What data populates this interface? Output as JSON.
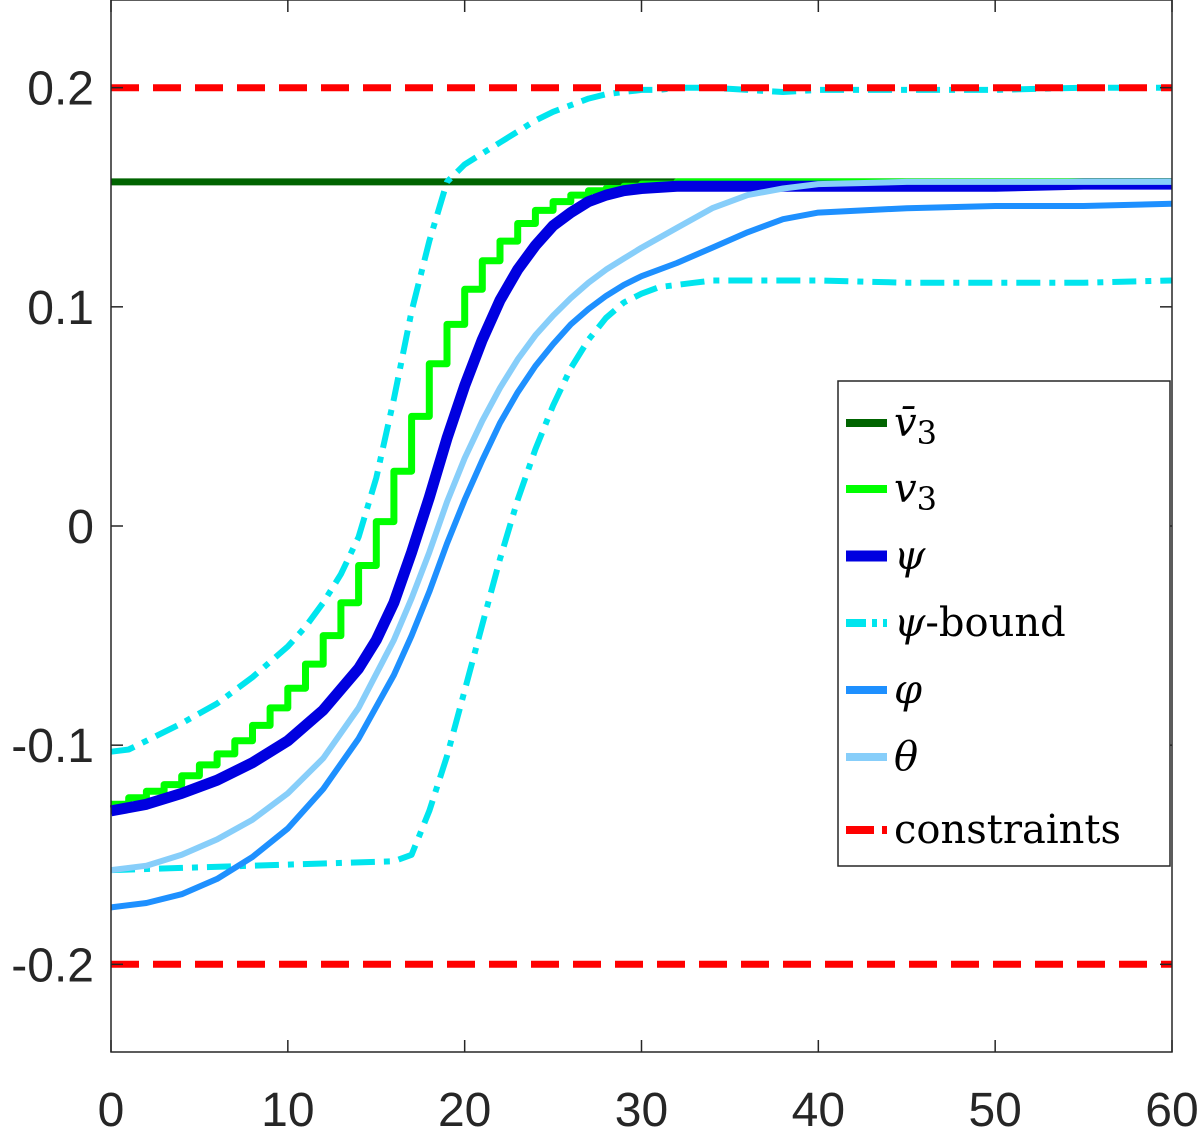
{
  "chart_data": {
    "type": "line",
    "title": "",
    "xlabel": "",
    "ylabel": "",
    "xlim": [
      0,
      60
    ],
    "ylim": [
      -0.24,
      0.24
    ],
    "xticks": [
      0,
      10,
      20,
      30,
      40,
      50,
      60
    ],
    "xtick_labels": [
      "0",
      "10",
      "20",
      "30",
      "40",
      "50",
      "60"
    ],
    "yticks": [
      0.2,
      0.1,
      0,
      -0.1,
      -0.2
    ],
    "ytick_labels": [
      "0.2",
      "0.1",
      "0",
      "-0.1",
      "-0.2"
    ],
    "grid": false,
    "legend_position": "right",
    "series": [
      {
        "key": "vbar3",
        "name": "v̄3",
        "color": "#006400",
        "style": "solid",
        "x": [
          0,
          60
        ],
        "y": [
          0.157,
          0.157
        ]
      },
      {
        "key": "v3",
        "name": "v3",
        "color": "#00ff00",
        "style": "step",
        "x": [
          0,
          1,
          2,
          3,
          4,
          5,
          6,
          7,
          8,
          9,
          10,
          11,
          12,
          13,
          14,
          15,
          16,
          17,
          18,
          19,
          20,
          21,
          22,
          23,
          24,
          25,
          26,
          27,
          28,
          29,
          30,
          31,
          32,
          33,
          34,
          36,
          38,
          40,
          45,
          50,
          55,
          60
        ],
        "y": [
          -0.127,
          -0.124,
          -0.121,
          -0.118,
          -0.114,
          -0.109,
          -0.104,
          -0.098,
          -0.091,
          -0.083,
          -0.074,
          -0.063,
          -0.05,
          -0.035,
          -0.018,
          0.002,
          0.025,
          0.05,
          0.074,
          0.092,
          0.108,
          0.121,
          0.13,
          0.138,
          0.144,
          0.148,
          0.151,
          0.153,
          0.154,
          0.155,
          0.156,
          0.156,
          0.157,
          0.157,
          0.157,
          0.157,
          0.157,
          0.157,
          0.157,
          0.157,
          0.157,
          0.157
        ]
      },
      {
        "key": "psi",
        "name": "ψ",
        "color": "#0000e0",
        "style": "solid",
        "x": [
          0,
          2,
          4,
          6,
          8,
          10,
          12,
          14,
          15,
          16,
          17,
          18,
          19,
          20,
          21,
          22,
          23,
          24,
          25,
          26,
          27,
          28,
          29,
          30,
          32,
          34,
          36,
          40,
          45,
          50,
          55,
          60
        ],
        "y": [
          -0.13,
          -0.127,
          -0.122,
          -0.116,
          -0.108,
          -0.098,
          -0.084,
          -0.065,
          -0.052,
          -0.035,
          -0.012,
          0.013,
          0.04,
          0.064,
          0.085,
          0.103,
          0.117,
          0.128,
          0.137,
          0.143,
          0.148,
          0.151,
          0.153,
          0.154,
          0.155,
          0.155,
          0.155,
          0.155,
          0.155,
          0.155,
          0.156,
          0.156
        ]
      },
      {
        "key": "psi_upper",
        "name": "ψ-bound",
        "color": "#00e5ee",
        "style": "dashdot",
        "x": [
          0,
          1,
          2,
          4,
          6,
          8,
          10,
          11,
          12,
          13,
          14,
          15,
          16,
          17,
          18,
          19,
          20,
          21,
          22,
          23,
          24,
          25,
          26,
          27,
          28,
          29,
          30,
          31,
          32,
          33,
          34,
          36,
          38,
          40,
          45,
          50,
          55,
          60
        ],
        "y": [
          -0.103,
          -0.102,
          -0.098,
          -0.09,
          -0.081,
          -0.069,
          -0.055,
          -0.046,
          -0.035,
          -0.022,
          -0.005,
          0.022,
          0.058,
          0.098,
          0.13,
          0.157,
          0.165,
          0.17,
          0.175,
          0.18,
          0.185,
          0.189,
          0.192,
          0.195,
          0.197,
          0.198,
          0.199,
          0.199,
          0.2,
          0.2,
          0.2,
          0.199,
          0.198,
          0.199,
          0.199,
          0.199,
          0.2,
          0.2
        ]
      },
      {
        "key": "psi_lower",
        "name": "ψ-bound",
        "color": "#00e5ee",
        "style": "dashdot",
        "x": [
          0,
          4,
          8,
          12,
          16,
          17,
          18,
          19,
          20,
          21,
          22,
          23,
          24,
          25,
          26,
          27,
          28,
          29,
          30,
          31,
          32,
          33,
          34,
          36,
          38,
          40,
          45,
          50,
          55,
          60
        ],
        "y": [
          -0.157,
          -0.156,
          -0.155,
          -0.154,
          -0.153,
          -0.15,
          -0.13,
          -0.105,
          -0.075,
          -0.045,
          -0.015,
          0.012,
          0.035,
          0.055,
          0.072,
          0.085,
          0.095,
          0.102,
          0.106,
          0.109,
          0.11,
          0.111,
          0.112,
          0.112,
          0.112,
          0.112,
          0.111,
          0.111,
          0.111,
          0.112
        ]
      },
      {
        "key": "phi",
        "name": "φ",
        "color": "#1e90ff",
        "style": "solid",
        "x": [
          0,
          2,
          4,
          6,
          8,
          10,
          12,
          14,
          16,
          17,
          18,
          19,
          20,
          21,
          22,
          23,
          24,
          25,
          26,
          27,
          28,
          29,
          30,
          32,
          34,
          36,
          38,
          40,
          45,
          50,
          55,
          60
        ],
        "y": [
          -0.174,
          -0.172,
          -0.168,
          -0.161,
          -0.151,
          -0.138,
          -0.12,
          -0.097,
          -0.068,
          -0.05,
          -0.03,
          -0.008,
          0.012,
          0.03,
          0.047,
          0.061,
          0.073,
          0.083,
          0.092,
          0.099,
          0.105,
          0.11,
          0.114,
          0.12,
          0.127,
          0.134,
          0.14,
          0.143,
          0.145,
          0.146,
          0.146,
          0.147
        ]
      },
      {
        "key": "theta",
        "name": "θ",
        "color": "#87cefa",
        "style": "solid",
        "x": [
          0,
          2,
          4,
          6,
          8,
          10,
          12,
          14,
          16,
          17,
          18,
          19,
          20,
          21,
          22,
          23,
          24,
          25,
          26,
          27,
          28,
          29,
          30,
          32,
          34,
          36,
          38,
          40,
          45,
          50,
          55,
          60
        ],
        "y": [
          -0.157,
          -0.155,
          -0.15,
          -0.143,
          -0.134,
          -0.122,
          -0.106,
          -0.083,
          -0.052,
          -0.033,
          -0.012,
          0.011,
          0.031,
          0.048,
          0.063,
          0.076,
          0.087,
          0.096,
          0.104,
          0.111,
          0.117,
          0.122,
          0.127,
          0.136,
          0.145,
          0.151,
          0.154,
          0.156,
          0.157,
          0.157,
          0.157,
          0.157
        ]
      },
      {
        "key": "constraint_upper",
        "name": "constraints",
        "color": "#ff0000",
        "style": "dashed",
        "x": [
          0,
          60
        ],
        "y": [
          0.2,
          0.2
        ]
      },
      {
        "key": "constraint_lower",
        "name": "constraints",
        "color": "#ff0000",
        "style": "dashed",
        "x": [
          0,
          60
        ],
        "y": [
          -0.2,
          -0.2
        ]
      }
    ],
    "legend": [
      {
        "key": "vbar3",
        "label": "v̄",
        "sub": "3",
        "color": "#006400",
        "style": "solid"
      },
      {
        "key": "v3",
        "label": "v",
        "sub": "3",
        "color": "#00ff00",
        "style": "solid"
      },
      {
        "key": "psi",
        "label": "ψ",
        "sub": "",
        "color": "#0000e0",
        "style": "solid"
      },
      {
        "key": "psi_bound",
        "label": "ψ",
        "suffix": "-bound",
        "color": "#00e5ee",
        "style": "dashdot"
      },
      {
        "key": "phi",
        "label": "φ",
        "sub": "",
        "color": "#1e90ff",
        "style": "solid"
      },
      {
        "key": "theta",
        "label": "θ",
        "sub": "",
        "color": "#87cefa",
        "style": "solid"
      },
      {
        "key": "constraints",
        "label": "constraints",
        "upright": true,
        "color": "#ff0000",
        "style": "dashed"
      }
    ]
  }
}
